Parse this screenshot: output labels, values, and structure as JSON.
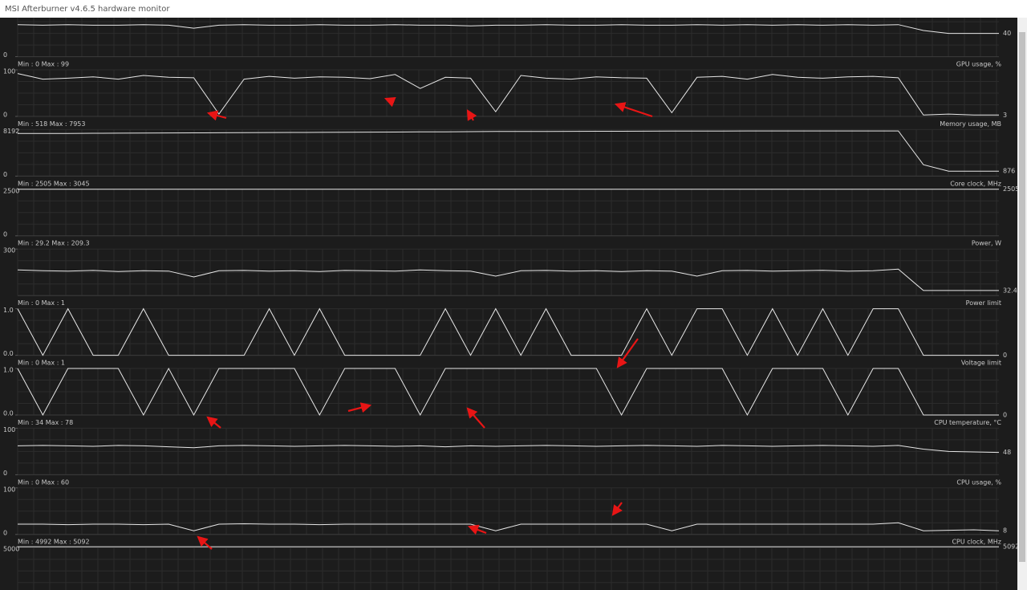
{
  "window": {
    "title": "MSI Afterburner v4.6.5 hardware monitor"
  },
  "panels": [
    {
      "ylim": [
        0,
        80
      ],
      "yticks": [
        0
      ],
      "current": "40",
      "values": [
        55,
        54,
        55,
        54,
        54,
        55,
        54,
        49,
        54,
        55,
        54,
        54,
        55,
        54,
        54,
        55,
        54,
        54,
        53,
        54,
        54,
        55,
        54,
        54,
        55,
        54,
        54,
        55,
        54,
        55,
        54,
        55,
        54,
        55,
        54,
        55,
        45,
        40,
        40,
        40
      ]
    },
    {
      "min_max": "Min : 0   Max : 99",
      "name": "GPU usage, %",
      "ylim": [
        0,
        100
      ],
      "yticks": [
        0,
        100
      ],
      "current": "3",
      "values": [
        92,
        80,
        82,
        85,
        80,
        88,
        84,
        83,
        5,
        80,
        86,
        82,
        85,
        84,
        81,
        90,
        60,
        84,
        82,
        10,
        88,
        82,
        80,
        85,
        83,
        82,
        8,
        84,
        86,
        80,
        90,
        84,
        82,
        85,
        86,
        83,
        3,
        5,
        3,
        3
      ]
    },
    {
      "min_max": "Min : 518   Max : 7953",
      "name": "Memory usage, MB",
      "ylim": [
        0,
        8192
      ],
      "yticks": [
        0,
        8192
      ],
      "current": "876",
      "values": [
        7500,
        7510,
        7520,
        7540,
        7560,
        7580,
        7600,
        7610,
        7630,
        7650,
        7670,
        7690,
        7700,
        7720,
        7740,
        7760,
        7780,
        7800,
        7820,
        7850,
        7860,
        7870,
        7880,
        7890,
        7900,
        7910,
        7920,
        7930,
        7940,
        7950,
        7953,
        7953,
        7953,
        7953,
        7953,
        7953,
        2000,
        876,
        876,
        876
      ]
    },
    {
      "min_max": "Min : 2505   Max : 3045",
      "name": "Core clock, MHz",
      "ylim": [
        0,
        2500
      ],
      "yticks": [
        0,
        2500
      ],
      "current": "2505",
      "values": [
        2505,
        2505,
        2505,
        2505,
        2505,
        2505,
        2505,
        2505,
        2505,
        2505,
        2505,
        2505,
        2505,
        2505,
        2505,
        2505,
        2505,
        2505,
        2505,
        2505,
        2505,
        2505,
        2505,
        2505,
        2505,
        2505,
        2505,
        2505,
        2505,
        2505,
        2505,
        2505,
        2505,
        2505,
        2505,
        2505,
        2505,
        2505,
        2505,
        2505
      ]
    },
    {
      "min_max": "Min : 29.2   Max : 209.3",
      "name": "Power, W",
      "ylim": [
        0,
        300
      ],
      "yticks": [
        300
      ],
      "current": "32.4",
      "values": [
        165,
        160,
        158,
        162,
        155,
        160,
        158,
        120,
        160,
        162,
        158,
        160,
        155,
        162,
        160,
        158,
        165,
        160,
        158,
        125,
        160,
        162,
        158,
        160,
        155,
        160,
        158,
        125,
        160,
        162,
        158,
        160,
        163,
        158,
        160,
        170,
        32.4,
        32.4,
        32.4,
        32.4
      ]
    },
    {
      "min_max": "Min : 0   Max : 1",
      "name": "Power limit",
      "ylim": [
        0,
        1
      ],
      "yticks": [
        {
          "value": 0,
          "label": "0.0"
        },
        {
          "value": 1,
          "label": "1.0"
        }
      ],
      "current": "0",
      "values": [
        1,
        0,
        1,
        0,
        0,
        1,
        0,
        0,
        0,
        0,
        1,
        0,
        1,
        0,
        0,
        0,
        0,
        1,
        0,
        1,
        0,
        1,
        0,
        0,
        0,
        1,
        0,
        1,
        1,
        0,
        1,
        0,
        1,
        0,
        1,
        1,
        0,
        0,
        0,
        0
      ]
    },
    {
      "min_max": "Min : 0   Max : 1",
      "name": "Voltage limit",
      "ylim": [
        0,
        1
      ],
      "yticks": [
        {
          "value": 0,
          "label": "0.0"
        },
        {
          "value": 1,
          "label": "1.0"
        }
      ],
      "current": "0",
      "values": [
        1,
        0,
        1,
        1,
        1,
        0,
        1,
        0,
        1,
        1,
        1,
        1,
        0,
        1,
        1,
        1,
        0,
        1,
        1,
        1,
        1,
        1,
        1,
        1,
        0,
        1,
        1,
        1,
        1,
        0,
        1,
        1,
        1,
        0,
        1,
        1,
        0,
        0,
        0,
        0
      ]
    },
    {
      "min_max": "Min : 34   Max : 78",
      "name": "CPU temperature, °C",
      "ylim": [
        0,
        100
      ],
      "yticks": [
        0,
        100
      ],
      "current": "48",
      "values": [
        62,
        63,
        62,
        61,
        63,
        62,
        60,
        58,
        62,
        63,
        62,
        61,
        62,
        63,
        62,
        61,
        62,
        60,
        62,
        61,
        62,
        63,
        62,
        61,
        62,
        63,
        62,
        61,
        63,
        62,
        61,
        62,
        63,
        62,
        61,
        63,
        55,
        50,
        49,
        48
      ]
    },
    {
      "min_max": "Min : 0   Max : 60",
      "name": "CPU usage, %",
      "ylim": [
        0,
        100
      ],
      "yticks": [
        0,
        100
      ],
      "current": "8",
      "values": [
        22,
        22,
        21,
        22,
        22,
        21,
        22,
        8,
        22,
        23,
        22,
        22,
        21,
        22,
        22,
        22,
        22,
        22,
        22,
        8,
        22,
        22,
        22,
        22,
        22,
        22,
        8,
        22,
        22,
        22,
        22,
        22,
        22,
        22,
        22,
        25,
        8,
        9,
        10,
        8
      ]
    },
    {
      "min_max": "Min : 4992   Max : 5092",
      "name": "CPU clock, MHz",
      "ylim": [
        0,
        5000
      ],
      "yticks": [
        5000
      ],
      "current": "5092",
      "values": [
        5092,
        5092,
        5092,
        5092,
        5092,
        5092,
        5092,
        5092,
        5092,
        5092,
        5092,
        5092,
        5092,
        5092,
        5092,
        5092,
        5092,
        5092,
        5092,
        5092,
        5092,
        5092,
        5092,
        5092,
        5092,
        5092,
        5092,
        5092,
        5092,
        5092,
        5092,
        5092,
        5092,
        5092,
        5092,
        5092,
        5092,
        5092,
        5092,
        5092
      ]
    }
  ]
}
